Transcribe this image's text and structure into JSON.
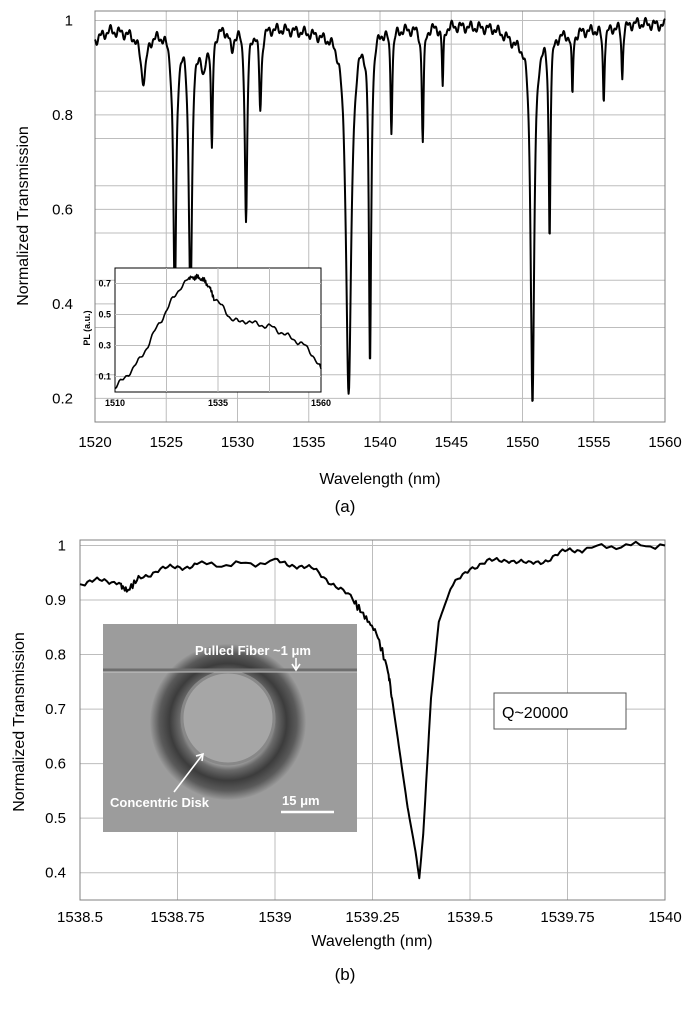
{
  "chart_data": [
    {
      "type": "line",
      "xlabel": "Wavelength (nm)",
      "ylabel": "Normalized Transmission",
      "caption": "(a)",
      "xlim": [
        1520,
        1560
      ],
      "ylim": [
        0.15,
        1.02
      ],
      "xticks": [
        "1520",
        "1525",
        "1530",
        "1535",
        "1540",
        "1545",
        "1550",
        "1555",
        "1560"
      ],
      "yticks": [
        "0.2",
        "0.4",
        "0.6",
        "0.8",
        "1"
      ],
      "ytick_values": [
        0.2,
        0.4,
        0.6,
        0.8,
        1.0
      ],
      "grid": true,
      "baseline": [
        [
          1520,
          0.96
        ],
        [
          1521,
          0.98
        ],
        [
          1523,
          0.975
        ],
        [
          1525,
          0.98
        ],
        [
          1527,
          0.985
        ],
        [
          1530,
          0.99
        ],
        [
          1533,
          0.985
        ],
        [
          1536,
          0.975
        ],
        [
          1539,
          0.99
        ],
        [
          1542,
          0.985
        ],
        [
          1545,
          0.99
        ],
        [
          1548,
          0.985
        ],
        [
          1549.5,
          0.96
        ],
        [
          1550.5,
          0.97
        ],
        [
          1553,
          0.975
        ],
        [
          1556,
          0.985
        ],
        [
          1558,
          0.995
        ],
        [
          1560,
          0.99
        ]
      ],
      "dips": [
        {
          "center": 1523.4,
          "min": 0.88,
          "width": 0.5
        },
        {
          "center": 1525.6,
          "min": 0.4,
          "width": 0.25
        },
        {
          "center": 1526.7,
          "min": 0.4,
          "width": 0.28
        },
        {
          "center": 1527.6,
          "min": 0.89,
          "width": 0.4
        },
        {
          "center": 1528.2,
          "min": 0.73,
          "width": 0.15
        },
        {
          "center": 1529.6,
          "min": 0.93,
          "width": 0.3
        },
        {
          "center": 1530.6,
          "min": 0.57,
          "width": 0.2
        },
        {
          "center": 1531.6,
          "min": 0.81,
          "width": 0.2
        },
        {
          "center": 1537.8,
          "min": 0.21,
          "width": 0.45
        },
        {
          "center": 1539.3,
          "min": 0.27,
          "width": 0.2
        },
        {
          "center": 1540.8,
          "min": 0.77,
          "width": 0.15
        },
        {
          "center": 1543.0,
          "min": 0.74,
          "width": 0.15
        },
        {
          "center": 1544.4,
          "min": 0.85,
          "width": 0.12
        },
        {
          "center": 1550.7,
          "min": 0.19,
          "width": 0.3
        },
        {
          "center": 1551.9,
          "min": 0.55,
          "width": 0.15
        },
        {
          "center": 1553.5,
          "min": 0.84,
          "width": 0.12
        },
        {
          "center": 1555.7,
          "min": 0.83,
          "width": 0.14
        },
        {
          "center": 1557.0,
          "min": 0.87,
          "width": 0.12
        }
      ],
      "inset": {
        "type": "line",
        "ylabel": "PL (a.u.)",
        "xlim": [
          1510,
          1560
        ],
        "ylim": [
          0.0,
          0.8
        ],
        "xticks": [
          "1510",
          "1535",
          "1560"
        ],
        "xtick_values": [
          1510,
          1535,
          1560
        ],
        "yticks": [
          "0.1",
          "0.3",
          "0.5",
          "0.7"
        ],
        "ytick_values": [
          0.1,
          0.3,
          0.5,
          0.7
        ],
        "x": [
          1510,
          1512,
          1514,
          1516,
          1518,
          1520,
          1522,
          1524,
          1526,
          1528,
          1529,
          1530,
          1531,
          1532,
          1533,
          1534,
          1536,
          1538,
          1540,
          1542,
          1544,
          1546,
          1548,
          1550,
          1552,
          1554,
          1556,
          1558,
          1560
        ],
        "y": [
          0.03,
          0.08,
          0.14,
          0.21,
          0.3,
          0.41,
          0.5,
          0.6,
          0.68,
          0.73,
          0.74,
          0.74,
          0.73,
          0.71,
          0.67,
          0.61,
          0.55,
          0.48,
          0.45,
          0.46,
          0.44,
          0.43,
          0.42,
          0.39,
          0.36,
          0.33,
          0.3,
          0.24,
          0.15
        ]
      }
    },
    {
      "type": "line",
      "xlabel": "Wavelength (nm)",
      "ylabel": "Normalized Transmission",
      "caption": "(b)",
      "annotation": "Q~20000",
      "xlim": [
        1538.5,
        1540
      ],
      "ylim": [
        0.35,
        1.01
      ],
      "xticks": [
        "1538.5",
        "1538.75",
        "1539",
        "1539.25",
        "1539.5",
        "1539.75",
        "1540"
      ],
      "xtick_values": [
        1538.5,
        1538.75,
        1539.0,
        1539.25,
        1539.5,
        1539.75,
        1540.0
      ],
      "yticks": [
        "0.4",
        "0.5",
        "0.6",
        "0.7",
        "0.8",
        "0.9",
        "1"
      ],
      "ytick_values": [
        0.4,
        0.5,
        0.6,
        0.7,
        0.8,
        0.9,
        1.0
      ],
      "grid": true,
      "x": [
        1538.5,
        1538.55,
        1538.6,
        1538.62,
        1538.65,
        1538.7,
        1538.75,
        1538.8,
        1538.9,
        1539.0,
        1539.05,
        1539.1,
        1539.15,
        1539.2,
        1539.23,
        1539.26,
        1539.29,
        1539.3,
        1539.32,
        1539.34,
        1539.36,
        1539.37,
        1539.38,
        1539.4,
        1539.42,
        1539.45,
        1539.5,
        1539.55,
        1539.6,
        1539.65,
        1539.7,
        1539.75,
        1539.8,
        1539.9,
        1540.0
      ],
      "y": [
        0.93,
        0.935,
        0.935,
        0.915,
        0.94,
        0.955,
        0.96,
        0.965,
        0.965,
        0.97,
        0.965,
        0.955,
        0.93,
        0.9,
        0.87,
        0.84,
        0.77,
        0.72,
        0.62,
        0.52,
        0.44,
        0.39,
        0.47,
        0.72,
        0.86,
        0.92,
        0.96,
        0.97,
        0.975,
        0.965,
        0.975,
        0.99,
        0.995,
        1.0,
        1.0
      ],
      "inset_labels": {
        "fiber": "Pulled Fiber ~1 μm",
        "disk": "Concentric Disk",
        "scale": "15 μm"
      }
    }
  ]
}
